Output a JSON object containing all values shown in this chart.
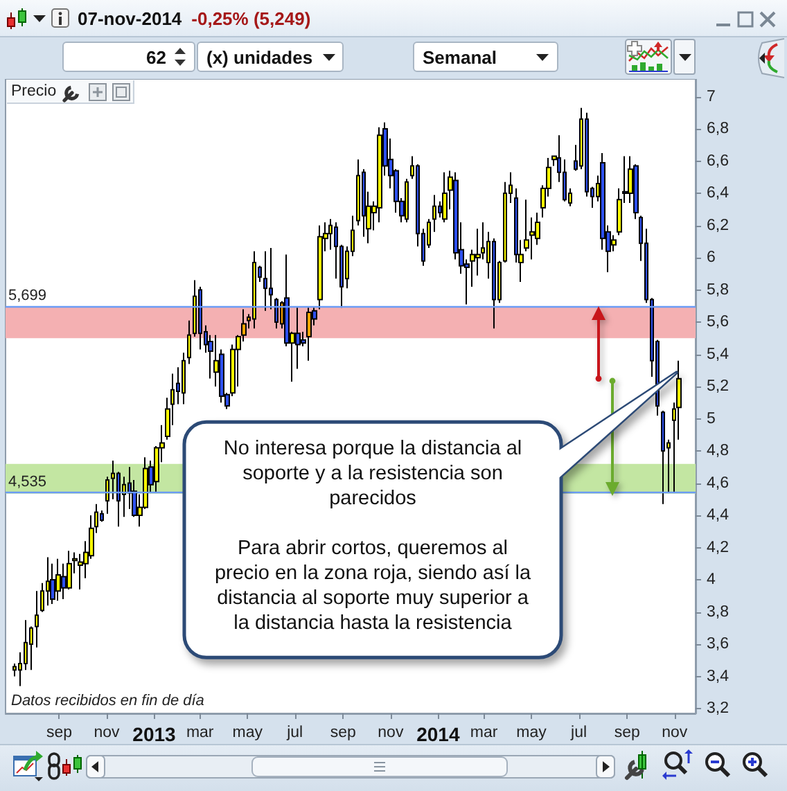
{
  "chart_data": {
    "type": "candlestick",
    "title": "07-nov-2014",
    "subtitle": "-0,25% (5,249)",
    "ylabel": "Precio",
    "annotations": [
      "No interesa porque la distancia al\nsoporte y a la resistencia son\nparecidos\n\nPara abrir cortos, queremos al\nprecio en la zona roja, siendo así la\ndistancia al soporte muy superior a\nla distancia hasta la resistencia",
      "Datos recibidos en fin de día",
      "62",
      "(x) unidades",
      "Semanal"
    ],
    "x": [
      "2012-07-06",
      "2012-07-13",
      "2012-07-20",
      "2012-07-27",
      "2012-08-03",
      "2012-08-10",
      "2012-08-17",
      "2012-08-24",
      "2012-08-31",
      "2012-09-07",
      "2012-09-14",
      "2012-09-21",
      "2012-09-28",
      "2012-10-05",
      "2012-10-12",
      "2012-10-19",
      "2012-10-26",
      "2012-11-02",
      "2012-11-09",
      "2012-11-16",
      "2012-11-23",
      "2012-11-30",
      "2012-12-07",
      "2012-12-14",
      "2012-12-21",
      "2012-12-28",
      "2013-01-04",
      "2013-01-11",
      "2013-01-18",
      "2013-01-25",
      "2013-02-01",
      "2013-02-08",
      "2013-02-15",
      "2013-02-22",
      "2013-03-01",
      "2013-03-08",
      "2013-03-15",
      "2013-03-22",
      "2013-03-29",
      "2013-04-05",
      "2013-04-12",
      "2013-04-19",
      "2013-04-26",
      "2013-05-03",
      "2013-05-10",
      "2013-05-17",
      "2013-05-24",
      "2013-05-31",
      "2013-06-07",
      "2013-06-14",
      "2013-06-21",
      "2013-06-28",
      "2013-07-05",
      "2013-07-12",
      "2013-07-19",
      "2013-07-26",
      "2013-08-02",
      "2013-08-09",
      "2013-08-16",
      "2013-08-23",
      "2013-08-30",
      "2013-09-06",
      "2013-09-13",
      "2013-09-20",
      "2013-09-27",
      "2013-10-04",
      "2013-10-11",
      "2013-10-18",
      "2013-10-25",
      "2013-11-01",
      "2013-11-08",
      "2013-11-15",
      "2013-11-22",
      "2013-11-29",
      "2013-12-06",
      "2013-12-13",
      "2013-12-20",
      "2013-12-27",
      "2014-01-03",
      "2014-01-10",
      "2014-01-17",
      "2014-01-24",
      "2014-01-31",
      "2014-02-07",
      "2014-02-14",
      "2014-02-21",
      "2014-02-28",
      "2014-03-07",
      "2014-03-14",
      "2014-03-21",
      "2014-03-28",
      "2014-04-04",
      "2014-04-11",
      "2014-04-18",
      "2014-04-25",
      "2014-05-02",
      "2014-05-09",
      "2014-05-16",
      "2014-05-23",
      "2014-05-30",
      "2014-06-06",
      "2014-06-13",
      "2014-06-20",
      "2014-06-27",
      "2014-07-04",
      "2014-07-11",
      "2014-07-18",
      "2014-07-25",
      "2014-08-01",
      "2014-08-08",
      "2014-08-15",
      "2014-08-22",
      "2014-08-29",
      "2014-09-05",
      "2014-09-12",
      "2014-09-19",
      "2014-09-26",
      "2014-10-03",
      "2014-10-10",
      "2014-10-17",
      "2014-10-24",
      "2014-10-31",
      "2014-11-07"
    ],
    "ohlc": [
      [
        3.44,
        3.48,
        3.4,
        3.46
      ],
      [
        3.44,
        3.55,
        3.34,
        3.48
      ],
      [
        3.48,
        3.75,
        3.44,
        3.61
      ],
      [
        3.6,
        3.71,
        3.44,
        3.7
      ],
      [
        3.71,
        3.93,
        3.58,
        3.78
      ],
      [
        3.81,
        3.98,
        3.8,
        3.93
      ],
      [
        3.93,
        4.14,
        3.84,
        3.99
      ],
      [
        4.0,
        4.1,
        3.85,
        3.88
      ],
      [
        3.93,
        4.13,
        3.87,
        4.03
      ],
      [
        4.02,
        4.1,
        3.88,
        3.95
      ],
      [
        3.95,
        4.18,
        3.94,
        4.1
      ],
      [
        4.12,
        4.17,
        4.04,
        4.13
      ],
      [
        4.09,
        4.16,
        3.94,
        4.11
      ],
      [
        4.1,
        4.24,
        4.01,
        4.17
      ],
      [
        4.15,
        4.4,
        4.13,
        4.32
      ],
      [
        4.33,
        4.47,
        4.29,
        4.42
      ],
      [
        4.41,
        4.43,
        4.36,
        4.37
      ],
      [
        4.49,
        4.64,
        4.41,
        4.62
      ],
      [
        4.63,
        4.74,
        4.5,
        4.66
      ],
      [
        4.66,
        4.67,
        4.33,
        4.49
      ],
      [
        4.53,
        4.64,
        4.39,
        4.59
      ],
      [
        4.6,
        4.7,
        4.44,
        4.54
      ],
      [
        4.55,
        4.62,
        4.39,
        4.4
      ],
      [
        4.4,
        4.53,
        4.33,
        4.45
      ],
      [
        4.45,
        4.76,
        4.44,
        4.69
      ],
      [
        4.7,
        4.74,
        4.54,
        4.59
      ],
      [
        4.61,
        4.83,
        4.54,
        4.82
      ],
      [
        4.82,
        4.96,
        4.73,
        4.85
      ],
      [
        4.89,
        5.13,
        4.87,
        5.06
      ],
      [
        5.09,
        5.28,
        4.96,
        5.18
      ],
      [
        5.22,
        5.32,
        5.09,
        5.17
      ],
      [
        5.16,
        5.41,
        5.09,
        5.36
      ],
      [
        5.38,
        5.61,
        5.34,
        5.52
      ],
      [
        5.53,
        5.86,
        5.51,
        5.76
      ],
      [
        5.8,
        5.82,
        5.43,
        5.53
      ],
      [
        5.54,
        5.58,
        5.41,
        5.46
      ],
      [
        5.48,
        5.52,
        5.25,
        5.42
      ],
      [
        5.29,
        5.52,
        5.2,
        5.36
      ],
      [
        5.4,
        5.43,
        5.1,
        5.14
      ],
      [
        5.15,
        5.16,
        5.06,
        5.08
      ],
      [
        5.16,
        5.46,
        5.14,
        5.43
      ],
      [
        5.43,
        5.52,
        5.2,
        5.51
      ],
      [
        5.52,
        5.68,
        5.48,
        5.59
      ],
      [
        5.61,
        5.65,
        5.56,
        5.63
      ],
      [
        5.62,
        6.04,
        5.56,
        5.97
      ],
      [
        5.94,
        5.95,
        5.85,
        5.88
      ],
      [
        5.87,
        6.04,
        5.67,
        5.81
      ],
      [
        5.81,
        6.06,
        5.68,
        5.77
      ],
      [
        5.74,
        5.75,
        5.56,
        5.6
      ],
      [
        5.59,
        5.73,
        5.56,
        5.72
      ],
      [
        5.75,
        6.02,
        5.45,
        5.47
      ],
      [
        5.47,
        5.54,
        5.23,
        5.53
      ],
      [
        5.53,
        5.69,
        5.31,
        5.46
      ],
      [
        5.49,
        5.54,
        5.45,
        5.47
      ],
      [
        5.51,
        5.69,
        5.36,
        5.66
      ],
      [
        5.67,
        5.69,
        5.58,
        5.62
      ],
      [
        5.74,
        6.2,
        5.68,
        6.13
      ],
      [
        6.12,
        6.22,
        6.04,
        6.15
      ],
      [
        6.15,
        6.24,
        6.05,
        6.2
      ],
      [
        6.19,
        6.22,
        5.87,
        6.07
      ],
      [
        6.07,
        6.08,
        5.69,
        5.82
      ],
      [
        5.87,
        6.07,
        5.81,
        6.04
      ],
      [
        6.04,
        6.26,
        6.01,
        6.17
      ],
      [
        6.23,
        6.61,
        6.2,
        6.51
      ],
      [
        6.53,
        6.55,
        6.13,
        6.26
      ],
      [
        6.18,
        6.41,
        6.09,
        6.32
      ],
      [
        6.28,
        6.35,
        6.17,
        6.32
      ],
      [
        6.31,
        6.81,
        6.22,
        6.76
      ],
      [
        6.8,
        6.84,
        6.51,
        6.57
      ],
      [
        6.61,
        6.74,
        6.43,
        6.51
      ],
      [
        6.54,
        6.55,
        6.28,
        6.35
      ],
      [
        6.35,
        6.37,
        6.22,
        6.26
      ],
      [
        6.24,
        6.49,
        6.22,
        6.47
      ],
      [
        6.51,
        6.63,
        6.49,
        6.57
      ],
      [
        6.57,
        6.58,
        6.07,
        6.15
      ],
      [
        6.15,
        6.18,
        5.95,
        5.98
      ],
      [
        6.08,
        6.24,
        6.06,
        6.22
      ],
      [
        6.24,
        6.39,
        6.16,
        6.32
      ],
      [
        6.32,
        6.35,
        6.25,
        6.28
      ],
      [
        6.24,
        6.53,
        6.22,
        6.4
      ],
      [
        6.42,
        6.54,
        6.3,
        6.5
      ],
      [
        6.48,
        6.53,
        5.99,
        6.03
      ],
      [
        6.05,
        6.22,
        5.9,
        5.95
      ],
      [
        5.96,
        5.99,
        5.71,
        5.94
      ],
      [
        5.98,
        6.05,
        5.82,
        6.02
      ],
      [
        6.0,
        6.18,
        5.89,
        6.02
      ],
      [
        6.03,
        6.22,
        5.99,
        6.06
      ],
      [
        5.97,
        6.16,
        5.87,
        6.1
      ],
      [
        6.1,
        6.12,
        5.56,
        5.74
      ],
      [
        5.74,
        5.98,
        5.72,
        5.97
      ],
      [
        5.98,
        6.47,
        5.97,
        6.4
      ],
      [
        6.4,
        6.53,
        6.34,
        6.45
      ],
      [
        6.37,
        6.43,
        5.97,
        6.02
      ],
      [
        5.97,
        6.11,
        5.85,
        6.02
      ],
      [
        6.06,
        6.36,
        6.04,
        6.11
      ],
      [
        6.14,
        6.25,
        5.99,
        6.16
      ],
      [
        6.12,
        6.28,
        6.08,
        6.22
      ],
      [
        6.31,
        6.45,
        6.25,
        6.43
      ],
      [
        6.43,
        6.62,
        6.38,
        6.56
      ],
      [
        6.61,
        6.63,
        6.57,
        6.63
      ],
      [
        6.62,
        6.76,
        6.47,
        6.53
      ],
      [
        6.53,
        6.61,
        6.35,
        6.36
      ],
      [
        6.34,
        6.43,
        6.32,
        6.4
      ],
      [
        6.6,
        6.7,
        6.54,
        6.55
      ],
      [
        6.57,
        6.93,
        6.55,
        6.86
      ],
      [
        6.86,
        6.9,
        6.38,
        6.41
      ],
      [
        6.43,
        6.44,
        6.31,
        6.38
      ],
      [
        6.38,
        6.51,
        6.35,
        6.46
      ],
      [
        6.59,
        6.65,
        6.05,
        6.12
      ],
      [
        6.16,
        6.2,
        5.91,
        6.04
      ],
      [
        6.08,
        6.14,
        6.04,
        6.11
      ],
      [
        6.16,
        6.43,
        6.14,
        6.36
      ],
      [
        6.41,
        6.63,
        6.34,
        6.4
      ],
      [
        6.4,
        6.63,
        6.34,
        6.55
      ],
      [
        6.57,
        6.58,
        6.24,
        6.28
      ],
      [
        6.25,
        6.26,
        5.98,
        6.09
      ],
      [
        6.09,
        6.18,
        5.72,
        5.74
      ],
      [
        5.74,
        5.75,
        5.26,
        5.36
      ],
      [
        5.48,
        5.49,
        5.02,
        5.08
      ],
      [
        5.04,
        5.05,
        4.47,
        4.8
      ],
      [
        4.82,
        4.87,
        4.54,
        4.85
      ],
      [
        4.99,
        5.1,
        4.54,
        5.06
      ],
      [
        5.07,
        5.36,
        4.87,
        5.249
      ]
    ],
    "colors": [
      "#ffff00",
      "#ffff00",
      "#ffff00",
      "#ffff00",
      "#ffff00",
      "#ffff00",
      "#ffff00",
      "#2d50f0",
      "#ffff00",
      "#2d50f0",
      "#ffff00",
      "#ffff00",
      "#ffff00",
      "#ffff00",
      "#ffff00",
      "#ffff00",
      "#2d50f0",
      "#ffff00",
      "#ffff00",
      "#2d50f0",
      "#ffff00",
      "#2d50f0",
      "#2d50f0",
      "#ffff00",
      "#ffff00",
      "#2d50f0",
      "#ffff00",
      "#ffff00",
      "#ffff00",
      "#ffff00",
      "#2d50f0",
      "#ffff00",
      "#ffff00",
      "#ffff00",
      "#2d50f0",
      "#2d50f0",
      "#2d50f0",
      "#ffff00",
      "#2d50f0",
      "#2d50f0",
      "#ffff00",
      "#ffff00",
      "#ffa500",
      "#ffa500",
      "#ffff00",
      "#2d50f0",
      "#2d50f0",
      "#2d50f0",
      "#2d50f0",
      "#ffa500",
      "#2d50f0",
      "#ffff00",
      "#2d50f0",
      "#2d50f0",
      "#ffa500",
      "#2d50f0",
      "#ffff00",
      "#ffff00",
      "#ffff00",
      "#2d50f0",
      "#2d50f0",
      "#ffff00",
      "#ffff00",
      "#ffff00",
      "#2d50f0",
      "#ffff00",
      "#ffff00",
      "#ffff00",
      "#2d50f0",
      "#2d50f0",
      "#2d50f0",
      "#2d50f0",
      "#ffff00",
      "#ffff00",
      "#2d50f0",
      "#2d50f0",
      "#ffff00",
      "#ffff00",
      "#2d50f0",
      "#ffff00",
      "#ffff00",
      "#2d50f0",
      "#2d50f0",
      "#2d50f0",
      "#ffff00",
      "#ffff00",
      "#ffff00",
      "#ffff00",
      "#2d50f0",
      "#ffff00",
      "#ffff00",
      "#ffff00",
      "#2d50f0",
      "#ffff00",
      "#ffff00",
      "#ffff00",
      "#ffff00",
      "#ffff00",
      "#ffff00",
      "#ffff00",
      "#2d50f0",
      "#2d50f0",
      "#ffff00",
      "#2d50f0",
      "#ffff00",
      "#2d50f0",
      "#2d50f0",
      "#ffff00",
      "#2d50f0",
      "#2d50f0",
      "#ffff00",
      "#ffff00",
      "#2d50f0",
      "#ffff00",
      "#2d50f0",
      "#2d50f0",
      "#2d50f0",
      "#2d50f0",
      "#2d50f0",
      "#2d50f0",
      "#ffff00",
      "#ffff00",
      "#ffff00"
    ],
    "xlim": [
      "2012-06-24",
      "2014-11-28"
    ],
    "xticks": [
      {
        "value": "2012-09-01",
        "label": "sep"
      },
      {
        "value": "2012-11-01",
        "label": "nov"
      },
      {
        "value": "2013-01-01",
        "label": "2013"
      },
      {
        "value": "2013-03-01",
        "label": "mar"
      },
      {
        "value": "2013-05-01",
        "label": "may"
      },
      {
        "value": "2013-07-01",
        "label": "jul"
      },
      {
        "value": "2013-09-01",
        "label": "sep"
      },
      {
        "value": "2013-11-01",
        "label": "nov"
      },
      {
        "value": "2014-01-01",
        "label": "2014"
      },
      {
        "value": "2014-03-01",
        "label": "mar"
      },
      {
        "value": "2014-05-01",
        "label": "may"
      },
      {
        "value": "2014-07-01",
        "label": "jul"
      },
      {
        "value": "2014-09-01",
        "label": "sep"
      },
      {
        "value": "2014-11-01",
        "label": "nov"
      }
    ],
    "ylim": [
      3.17,
      7.11
    ],
    "yticks": [
      {
        "value": 3.2,
        "label": "3,2"
      },
      {
        "value": 3.4,
        "label": "3,4"
      },
      {
        "value": 3.6,
        "label": "3,6"
      },
      {
        "value": 3.8,
        "label": "3,8"
      },
      4,
      {
        "value": 4.2,
        "label": "4,2"
      },
      {
        "value": 4.4,
        "label": "4,4"
      },
      {
        "value": 4.6,
        "label": "4,6"
      },
      {
        "value": 4.8,
        "label": "4,8"
      },
      5,
      {
        "value": 5.2,
        "label": "5,2"
      },
      {
        "value": 5.4,
        "label": "5,4"
      },
      {
        "value": 5.6,
        "label": "5,6"
      },
      {
        "value": 5.8,
        "label": "5,8"
      },
      6,
      {
        "value": 6.2,
        "label": "6,2"
      },
      {
        "value": 6.4,
        "label": "6,4"
      },
      {
        "value": 6.6,
        "label": "6,6"
      },
      {
        "value": 6.8,
        "label": "6,8"
      },
      7
    ],
    "ref_lines": [
      {
        "axis": "y",
        "value": 5.699,
        "label": "5,699",
        "color": "#6b9bf5"
      },
      {
        "axis": "y",
        "value": 4.535,
        "label": "4,535",
        "color": "#6b9bf5"
      }
    ],
    "bands": [
      {
        "axis": "y",
        "from": 5.5,
        "to": 5.699,
        "color": "#f4b0b2"
      },
      {
        "axis": "y",
        "from": 4.535,
        "to": 4.72,
        "color": "#c3e6a2"
      }
    ]
  }
}
